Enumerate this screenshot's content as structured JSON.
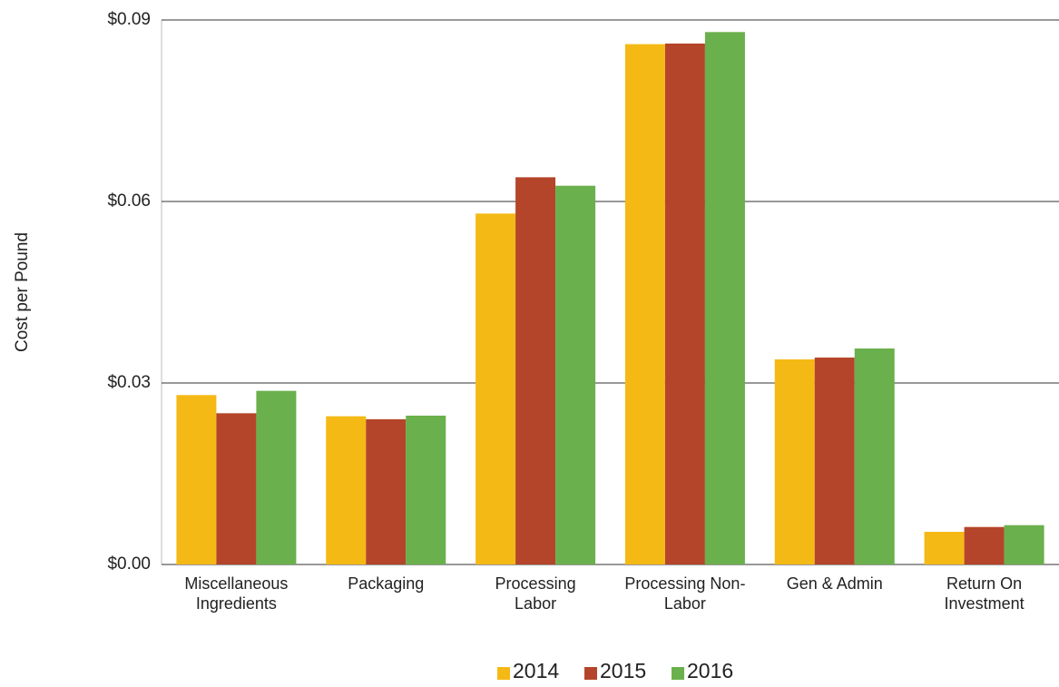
{
  "chart_data": {
    "type": "bar",
    "y_label": "Cost per Pound",
    "categories": [
      "Miscellaneous Ingredients",
      "Packaging",
      "Processing Labor",
      "Processing Non-Labor",
      "Gen & Admin",
      "Return On Investment"
    ],
    "series": [
      {
        "name": "2014",
        "color": "#f5b915",
        "values": [
          0.028,
          0.0245,
          0.058,
          0.086,
          0.0339,
          0.0054
        ]
      },
      {
        "name": "2015",
        "color": "#b5452a",
        "values": [
          0.025,
          0.024,
          0.064,
          0.0861,
          0.0342,
          0.0062
        ]
      },
      {
        "name": "2016",
        "color": "#6ab04c",
        "values": [
          0.0287,
          0.0246,
          0.0626,
          0.088,
          0.0357,
          0.0065
        ]
      }
    ],
    "ylim": [
      0,
      0.09
    ],
    "yticks": [
      {
        "value": 0,
        "label": "$0.00"
      },
      {
        "value": 0.03,
        "label": "$0.03"
      },
      {
        "value": 0.06,
        "label": "$0.06"
      },
      {
        "value": 0.09,
        "label": "$0.09"
      }
    ],
    "grid": true,
    "legend": "bottom"
  }
}
